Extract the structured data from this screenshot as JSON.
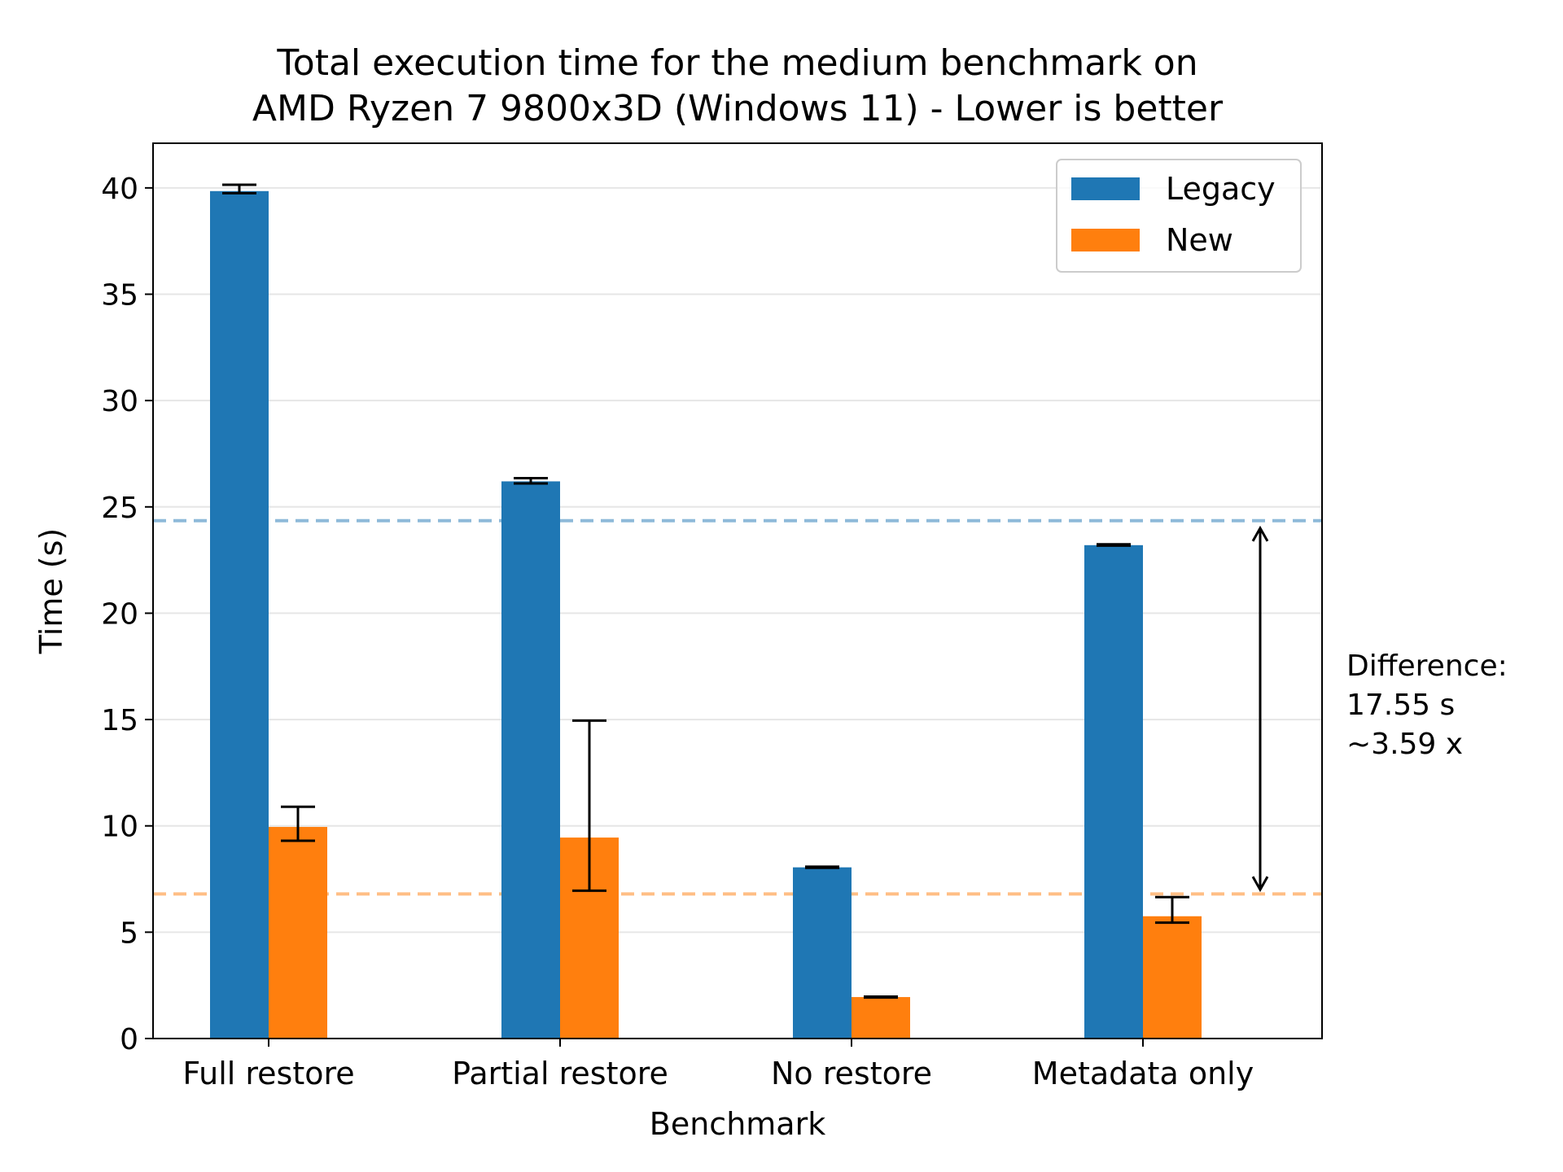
{
  "chart_data": {
    "type": "bar",
    "title_line1": "Total execution time for the medium benchmark on",
    "title_line2": "AMD Ryzen 7 9800x3D (Windows 11) - Lower is better",
    "xlabel": "Benchmark",
    "ylabel": "Time (s)",
    "categories": [
      "Full restore",
      "Partial restore",
      "No restore",
      "Metadata only"
    ],
    "ylim": [
      0,
      42.1
    ],
    "yticks": [
      0,
      5,
      10,
      15,
      20,
      25,
      30,
      35,
      40
    ],
    "ytick_labels": [
      "0",
      "5",
      "10",
      "15",
      "20",
      "25",
      "30",
      "35",
      "40"
    ],
    "grid": "horizontal",
    "legend_position": "top-right",
    "series": [
      {
        "name": "Legacy",
        "color": "#1f77b4",
        "values": [
          39.85,
          26.2,
          8.05,
          23.2
        ],
        "err_low": [
          39.75,
          26.1,
          8.03,
          23.18
        ],
        "err_high": [
          40.15,
          26.35,
          8.08,
          23.24
        ]
      },
      {
        "name": "New",
        "color": "#ff7f0e",
        "values": [
          9.95,
          9.45,
          1.95,
          5.75
        ],
        "err_low": [
          9.3,
          6.95,
          1.93,
          5.45
        ],
        "err_high": [
          10.9,
          14.95,
          1.97,
          6.65
        ]
      }
    ],
    "reference_lines": [
      {
        "value": 24.35,
        "color": "#1f77b4"
      },
      {
        "value": 6.8,
        "color": "#ff7f0e"
      }
    ],
    "annotation": {
      "arrow_from": 24.0,
      "arrow_to": 7.0,
      "lines": [
        "Difference:",
        "17.55 s",
        "~3.59 x"
      ]
    }
  }
}
